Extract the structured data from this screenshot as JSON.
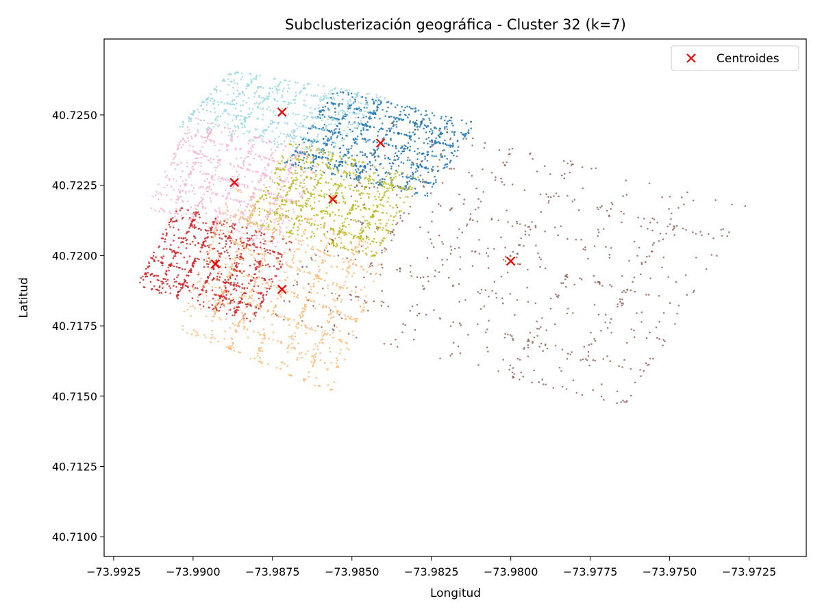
{
  "chart_data": {
    "type": "scatter",
    "title": "Subclusterización geográfica - Cluster 32 (k=7)",
    "xlabel": "Longitud",
    "ylabel": "Latitud",
    "xlim": [
      -73.9928,
      -73.9707
    ],
    "ylim": [
      40.7093,
      40.7277
    ],
    "x_ticks": [
      -73.9925,
      -73.99,
      -73.9875,
      -73.985,
      -73.9825,
      -73.98,
      -73.9775,
      -73.975,
      -73.9725
    ],
    "x_tick_labels": [
      "−73.9925",
      "−73.9900",
      "−73.9875",
      "−73.9850",
      "−73.9825",
      "−73.9800",
      "−73.9775",
      "−73.9750",
      "−73.9725"
    ],
    "y_ticks": [
      40.71,
      40.7125,
      40.715,
      40.7175,
      40.72,
      40.7225,
      40.725
    ],
    "y_tick_labels": [
      "40.7100",
      "40.7125",
      "40.7150",
      "40.7175",
      "40.7200",
      "40.7225",
      "40.7250"
    ],
    "grid": false,
    "legend": {
      "position": "top-right",
      "entries": [
        "Centroides"
      ]
    },
    "centroid_color": "#ff0000",
    "clusters": [
      {
        "color": "#1f77b4",
        "centroid": [
          -73.9841,
          40.724
        ]
      },
      {
        "color": "#9edae5",
        "centroid": [
          -73.9872,
          40.7251
        ]
      },
      {
        "color": "#f7b6d2",
        "centroid": [
          -73.9887,
          40.7226
        ]
      },
      {
        "color": "#bcbd22",
        "centroid": [
          -73.9856,
          40.722
        ]
      },
      {
        "color": "#d62728",
        "centroid": [
          -73.9893,
          40.7197
        ]
      },
      {
        "color": "#ffbb78",
        "centroid": [
          -73.9872,
          40.7188
        ]
      },
      {
        "color": "#8c564b",
        "centroid": [
          -73.98,
          40.7198
        ]
      }
    ],
    "centroids_series_name": "Centroides"
  }
}
